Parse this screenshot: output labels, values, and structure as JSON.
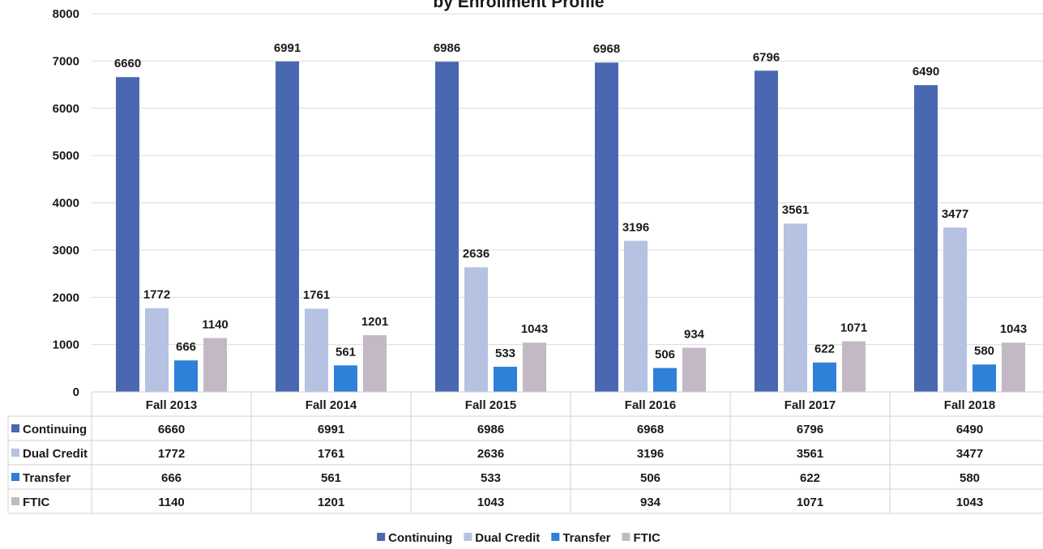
{
  "chart_data": {
    "type": "bar",
    "title": "by Enrollment Profile",
    "categories": [
      "Fall 2013",
      "Fall 2014",
      "Fall 2015",
      "Fall 2016",
      "Fall 2017",
      "Fall 2018"
    ],
    "series": [
      {
        "name": "Continuing",
        "color": "#4a67b1",
        "values": [
          6660,
          6991,
          6986,
          6968,
          6796,
          6490
        ]
      },
      {
        "name": "Dual Credit",
        "color": "#b5c2e1",
        "values": [
          1772,
          1761,
          2636,
          3196,
          3561,
          3477
        ]
      },
      {
        "name": "Transfer",
        "color": "#2f80d8",
        "values": [
          666,
          561,
          533,
          506,
          622,
          580
        ]
      },
      {
        "name": "FTIC",
        "color": "#c3b9c5",
        "values": [
          1140,
          1201,
          1043,
          934,
          1071,
          1043
        ]
      }
    ],
    "ylim": [
      0,
      8000
    ],
    "yticks": [
      0,
      1000,
      2000,
      3000,
      4000,
      5000,
      6000,
      7000,
      8000
    ],
    "grid": true,
    "data_table": true,
    "legend": "bottom"
  }
}
